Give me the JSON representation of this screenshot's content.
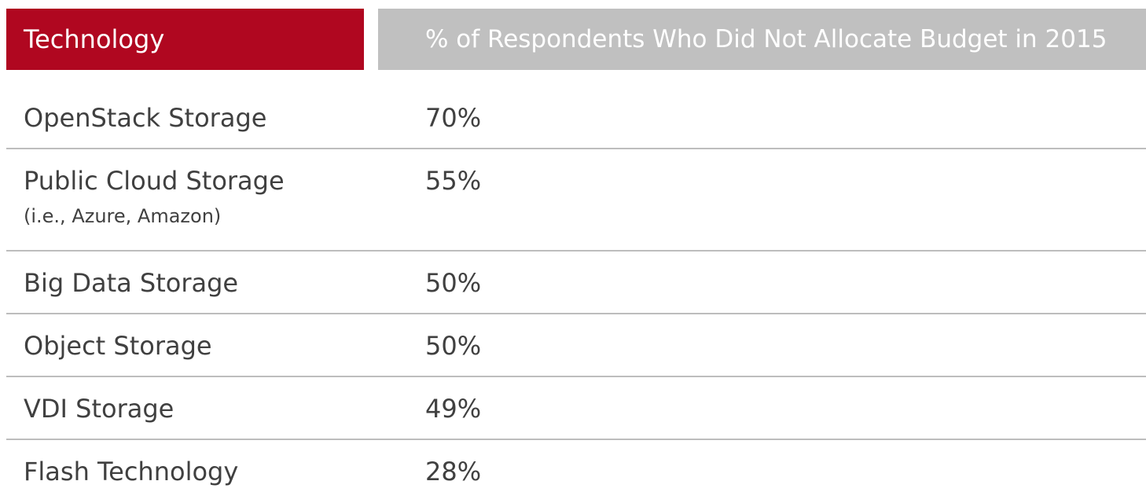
{
  "chart_data": {
    "type": "table",
    "columns": [
      "Technology",
      "% of Respondents Who Did Not Allocate Budget in 2015"
    ],
    "rows": [
      {
        "technology": "OpenStack Storage",
        "note": "",
        "value_label": "70%",
        "value": 70
      },
      {
        "technology": "Public Cloud Storage",
        "note": "(i.e., Azure, Amazon)",
        "value_label": "55%",
        "value": 55
      },
      {
        "technology": "Big Data Storage",
        "note": "",
        "value_label": "50%",
        "value": 50
      },
      {
        "technology": "Object Storage",
        "note": "",
        "value_label": "50%",
        "value": 50
      },
      {
        "technology": "VDI Storage",
        "note": "",
        "value_label": "49%",
        "value": 49
      },
      {
        "technology": "Flash Technology",
        "note": "",
        "value_label": "28%",
        "value": 28
      }
    ]
  },
  "colors": {
    "header_primary": "#b00720",
    "header_secondary": "#c0c0c0",
    "text": "#404040",
    "divider": "#bdbdbd"
  }
}
